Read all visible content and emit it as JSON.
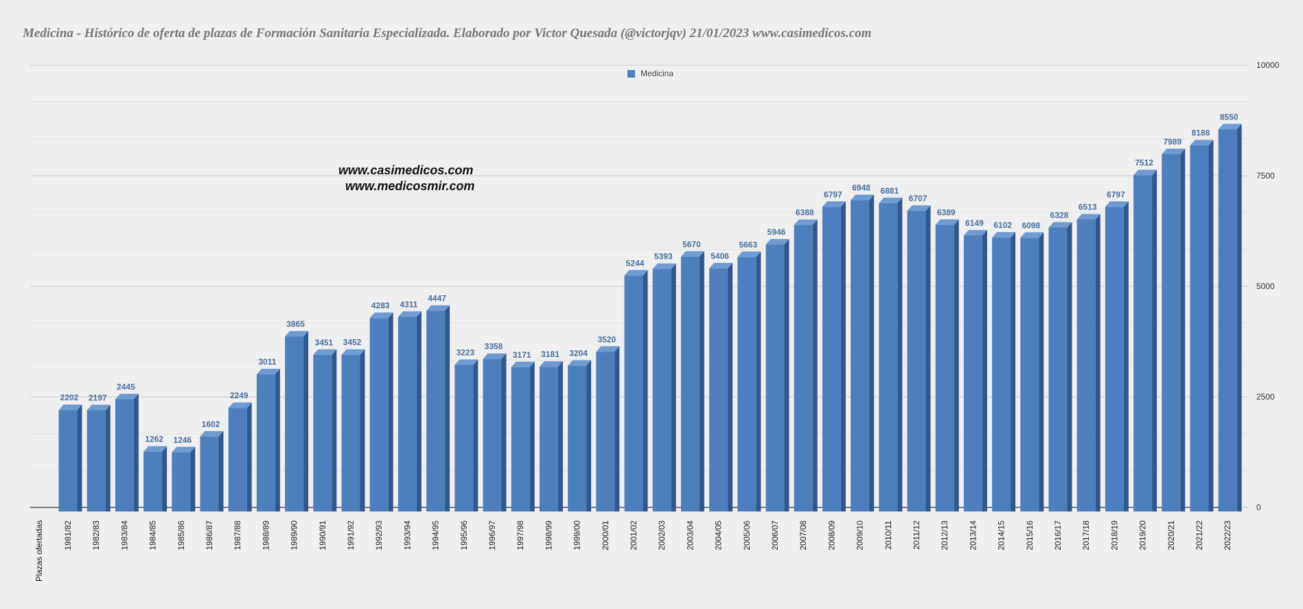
{
  "chart_data": {
    "type": "bar",
    "title": "Medicina - Histórico de oferta de plazas de Formación Sanitaria Especializada. Elaborado por Victor Quesada (@victorjqv)  21/01/2023 www.casimedicos.com",
    "xlabel": "Plazas ofertadas",
    "ylabel": "",
    "ylim": [
      0,
      10000
    ],
    "yticks": [
      0,
      2500,
      5000,
      7500,
      10000
    ],
    "legend_position": "top-center",
    "grid": true,
    "categories": [
      "1981/82",
      "1982/83",
      "1983/84",
      "1984/85",
      "1985/86",
      "1986/87",
      "1987/88",
      "1988/89",
      "1989/90",
      "1990/91",
      "1991/92",
      "1992/93",
      "1993/94",
      "1994/95",
      "1995/96",
      "1996/97",
      "1997/98",
      "1998/99",
      "1999/00",
      "2000/01",
      "2001/02",
      "2002/03",
      "2003/04",
      "2004/05",
      "2005/06",
      "2006/07",
      "2007/08",
      "2008/09",
      "2009/10",
      "2010/11",
      "2011/12",
      "2012/13",
      "2013/14",
      "2014/15",
      "2015/16",
      "2016/17",
      "2017/18",
      "2018/19",
      "2019/20",
      "2020/21",
      "2021/22",
      "2022/23"
    ],
    "series": [
      {
        "name": "Medicina",
        "color": "#4d7fbf",
        "values": [
          2202,
          2197,
          2445,
          1262,
          1246,
          1602,
          2249,
          3011,
          3865,
          3451,
          3452,
          4283,
          4311,
          4447,
          3223,
          3358,
          3171,
          3181,
          3204,
          3520,
          5244,
          5393,
          5670,
          5406,
          5663,
          5946,
          6388,
          6797,
          6948,
          6881,
          6707,
          6389,
          6149,
          6102,
          6098,
          6328,
          6513,
          6797,
          7512,
          7989,
          8188,
          8550
        ]
      }
    ]
  },
  "watermarks": [
    "www.casimedicos.com",
    "www.medicosmir.com"
  ]
}
